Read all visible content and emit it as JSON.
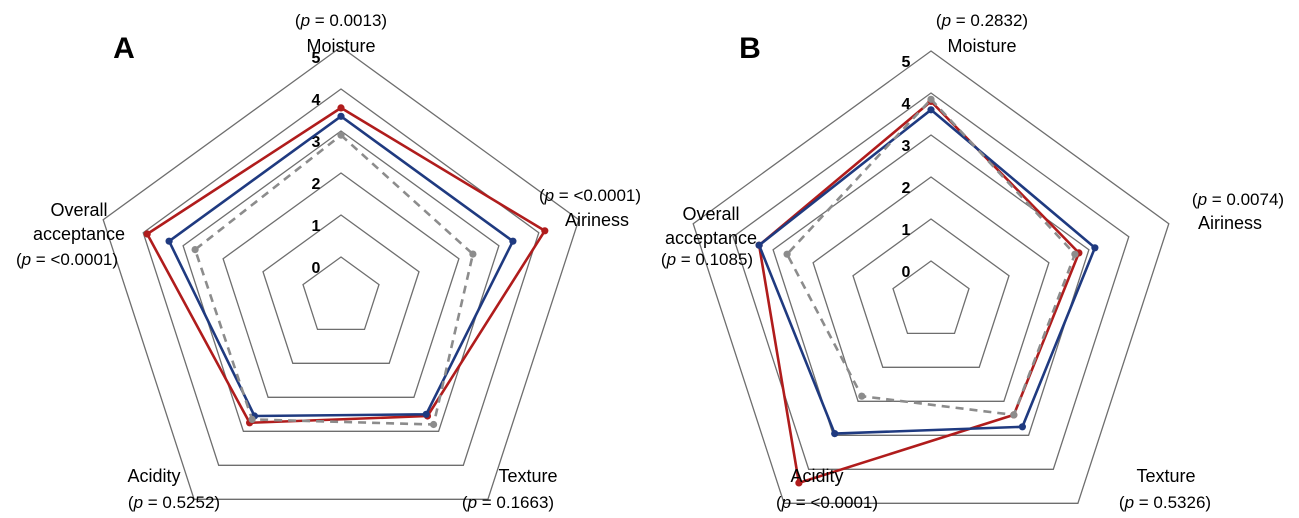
{
  "chart_data": [
    {
      "type": "radar",
      "panel_label": "A",
      "axes": [
        {
          "name": "Moisture",
          "p_prefix": "(",
          "p_symbol": "p",
          "p_suffix": " = 0.0013)"
        },
        {
          "name": "Airiness",
          "p_prefix": "(",
          "p_symbol": "p",
          "p_suffix": " = <0.0001)"
        },
        {
          "name": "Texture",
          "p_prefix": "(",
          "p_symbol": "p",
          "p_suffix": " = 0.1663)"
        },
        {
          "name": "Acidity",
          "p_prefix": "(",
          "p_symbol": "p",
          "p_suffix": " = 0.5252)"
        },
        {
          "name_lines": [
            "Overall",
            "acceptance"
          ],
          "p_prefix": "(",
          "p_symbol": "p",
          "p_suffix": " = <0.0001)"
        }
      ],
      "range": [
        0,
        5
      ],
      "ticks": [
        "0",
        "1",
        "2",
        "3",
        "4",
        "5"
      ],
      "series": [
        {
          "color": "#b01c1c",
          "dash": false,
          "values": [
            3.55,
            4.15,
            2.55,
            2.75,
            3.9
          ]
        },
        {
          "color": "#1f3a80",
          "dash": false,
          "values": [
            3.35,
            3.35,
            2.5,
            2.55,
            3.35
          ]
        },
        {
          "color": "#8c8c8c",
          "dash": true,
          "values": [
            2.9,
            2.35,
            2.8,
            2.65,
            2.7
          ]
        }
      ]
    },
    {
      "type": "radar",
      "panel_label": "B",
      "axes": [
        {
          "name": "Moisture",
          "p_prefix": "(",
          "p_symbol": "p",
          "p_suffix": " = 0.2832)"
        },
        {
          "name": "Airiness",
          "p_prefix": "(",
          "p_symbol": "p",
          "p_suffix": " = 0.0074)"
        },
        {
          "name": "Texture",
          "p_prefix": "(",
          "p_symbol": "p",
          "p_suffix": " = 0.5326)"
        },
        {
          "name": "Acidity",
          "p_prefix": "(",
          "p_symbol": "p",
          "p_suffix": " = <0.0001)"
        },
        {
          "name_lines": [
            "Overall",
            "acceptance"
          ],
          "p_prefix": "(",
          "p_symbol": "p",
          "p_suffix": " = 0.1085)"
        }
      ],
      "range": [
        0,
        5
      ],
      "ticks": [
        "0",
        "1",
        "2",
        "3",
        "4",
        "5"
      ],
      "series": [
        {
          "color": "#b01c1c",
          "dash": false,
          "values": [
            3.8,
            2.75,
            2.4,
            4.4,
            3.35
          ]
        },
        {
          "color": "#1f3a80",
          "dash": false,
          "values": [
            3.6,
            3.15,
            2.75,
            2.95,
            3.35
          ]
        },
        {
          "color": "#8c8c8c",
          "dash": true,
          "values": [
            3.85,
            2.65,
            2.4,
            1.85,
            2.65
          ]
        }
      ]
    }
  ]
}
